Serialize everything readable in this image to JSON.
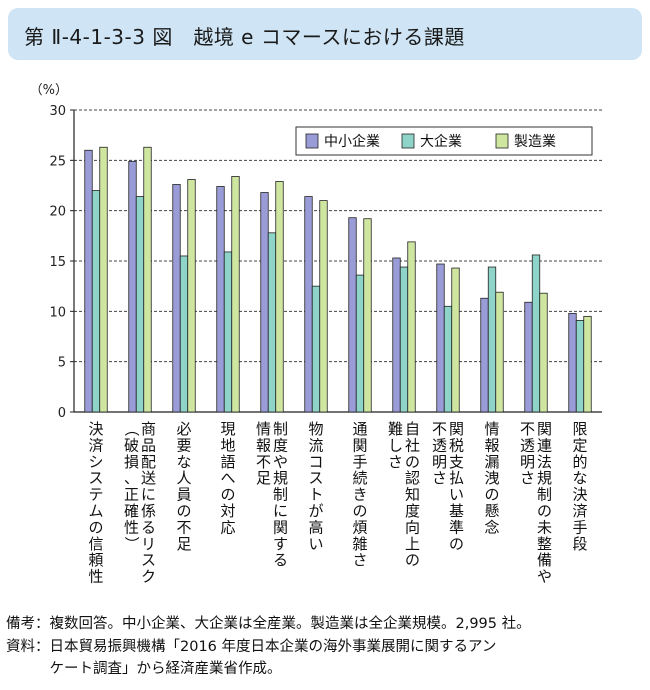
{
  "header": {
    "title": "第 Ⅱ-4-1-3-3 図　越境 e コマースにおける課題"
  },
  "chart_data": {
    "type": "bar",
    "title": "第 Ⅱ-4-1-3-3 図　越境 e コマースにおける課題",
    "ylabel": "（%）",
    "ylim": [
      0,
      30
    ],
    "yticks": [
      0,
      5,
      10,
      15,
      20,
      25,
      30
    ],
    "grid": true,
    "legend_position": "top-right",
    "categories": [
      [
        "決済システムの信頼性"
      ],
      [
        "商品配送に係るリスク",
        "（破損、正確性）"
      ],
      [
        "必要な人員の不足"
      ],
      [
        "現地語への対応"
      ],
      [
        "制度や規制に関する",
        "情報不足"
      ],
      [
        "物流コストが高い"
      ],
      [
        "通関手続きの煩雑さ"
      ],
      [
        "自社の認知度向上の",
        "難しさ"
      ],
      [
        "関税支払い基準の",
        "不透明さ"
      ],
      [
        "情報漏洩の懸念"
      ],
      [
        "関連法規制の未整備や",
        "不透明さ"
      ],
      [
        "限定的な決済手段"
      ]
    ],
    "series": [
      {
        "name": "中小企業",
        "color": "#9a9cd8",
        "values": [
          26.0,
          24.9,
          22.6,
          22.4,
          21.8,
          21.4,
          19.3,
          15.3,
          14.7,
          11.3,
          10.9,
          9.8
        ]
      },
      {
        "name": "大企業",
        "color": "#8fd4c8",
        "values": [
          22.0,
          21.4,
          15.5,
          15.9,
          17.8,
          12.5,
          13.6,
          14.4,
          10.5,
          14.4,
          15.6,
          9.1
        ]
      },
      {
        "name": "製造業",
        "color": "#cfe6a0",
        "values": [
          26.3,
          26.3,
          23.1,
          23.4,
          22.9,
          21.0,
          19.2,
          16.9,
          14.3,
          11.9,
          11.8,
          9.5
        ]
      }
    ]
  },
  "notes": {
    "line1": "備考：複数回答。中小企業、大企業は全産業。製造業は全企業規模。2,995 社。",
    "line2": "資料：日本貿易振興機構「2016 年度日本企業の海外事業展開に関するアン",
    "line3": "　　　ケート調査」から経済産業省作成。"
  }
}
